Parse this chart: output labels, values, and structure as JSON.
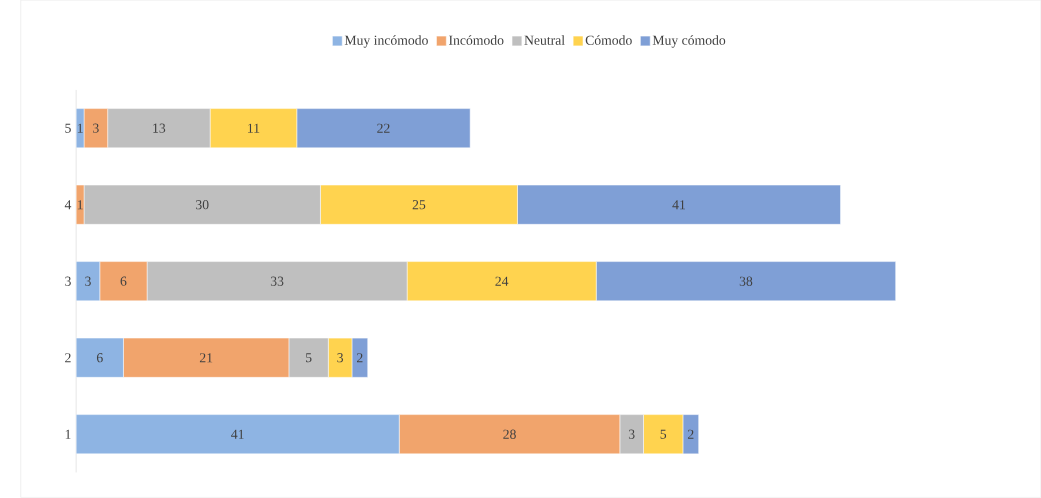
{
  "chart_data": {
    "type": "bar",
    "orientation": "horizontal",
    "stacked": true,
    "legend": "top",
    "categories": [
      "5",
      "4",
      "3",
      "2",
      "1"
    ],
    "series": [
      {
        "name": "Muy incómodo",
        "color": "#8eb4e3",
        "values": [
          1,
          0,
          3,
          6,
          41
        ],
        "value_labels": [
          "1",
          null,
          "3",
          "6",
          "41"
        ]
      },
      {
        "name": "Incómodo",
        "color": "#f1a46c",
        "values": [
          3,
          1,
          6,
          21,
          28
        ],
        "value_labels": [
          "3",
          "1",
          "6",
          "21",
          "28"
        ]
      },
      {
        "name": "Neutral",
        "color": "#bfbfbf",
        "values": [
          13,
          30,
          33,
          5,
          3
        ],
        "value_labels": [
          "13",
          "30",
          "33",
          "5",
          "3"
        ]
      },
      {
        "name": "Cómodo",
        "color": "#ffd34f",
        "values": [
          11,
          25,
          24,
          3,
          5
        ],
        "value_labels": [
          "11",
          "25",
          "24",
          "3",
          "5"
        ]
      },
      {
        "name": "Muy cómodo",
        "color": "#7f9fd6",
        "values": [
          22,
          41,
          38,
          2,
          2
        ],
        "value_labels": [
          "22",
          "41",
          "38",
          "2",
          "2"
        ]
      }
    ]
  }
}
